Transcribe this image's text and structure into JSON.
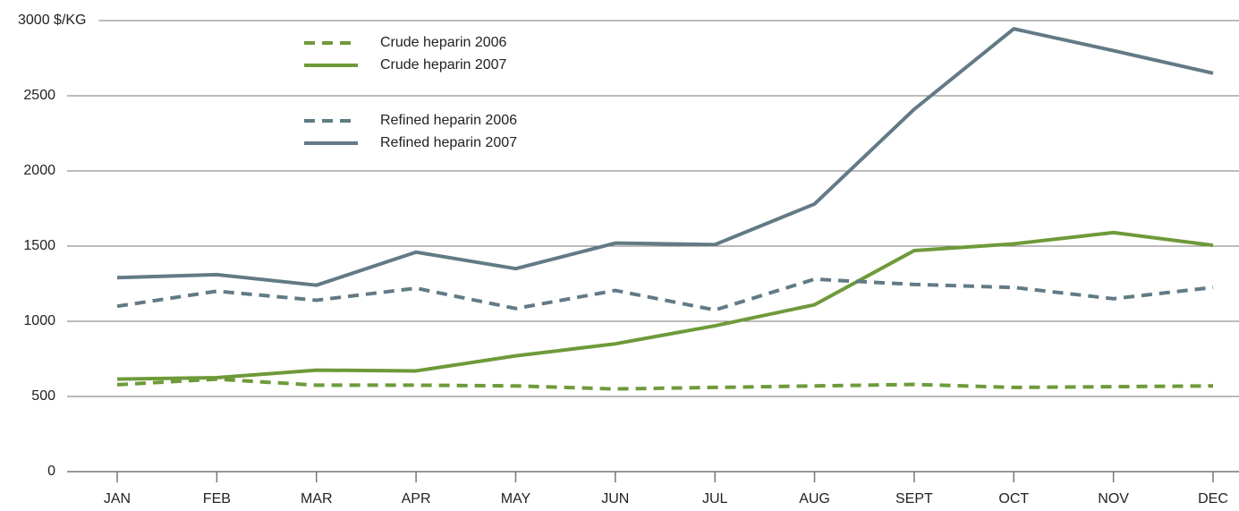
{
  "chart_data": {
    "type": "line",
    "categories": [
      "JAN",
      "FEB",
      "MAR",
      "APR",
      "MAY",
      "JUN",
      "JUL",
      "AUG",
      "SEPT",
      "OCT",
      "NOV",
      "DEC"
    ],
    "series": [
      {
        "name": "Crude heparin 2006",
        "color": "#6e9a3a",
        "dashed": true,
        "values": [
          578,
          615,
          575,
          575,
          570,
          550,
          560,
          570,
          580,
          560,
          565,
          570
        ]
      },
      {
        "name": "Crude heparin 2007",
        "color": "#6e9a3a",
        "dashed": false,
        "values": [
          615,
          625,
          675,
          670,
          770,
          850,
          970,
          1110,
          1470,
          1515,
          1590,
          1505
        ]
      },
      {
        "name": "Refined heparin 2006",
        "color": "#627a85",
        "dashed": true,
        "values": [
          1100,
          1200,
          1140,
          1220,
          1085,
          1205,
          1075,
          1280,
          1245,
          1225,
          1150,
          1225
        ]
      },
      {
        "name": "Refined heparin 2007",
        "color": "#627a85",
        "dashed": false,
        "values": [
          1290,
          1310,
          1240,
          1460,
          1350,
          1520,
          1510,
          1780,
          2410,
          2945,
          2800,
          2650
        ]
      }
    ],
    "ylim": [
      0,
      3000
    ],
    "yticks": [
      0,
      500,
      1000,
      1500,
      2000,
      2500,
      {
        "value": 3000,
        "label": "3000 $/KG"
      }
    ],
    "grid": true
  }
}
